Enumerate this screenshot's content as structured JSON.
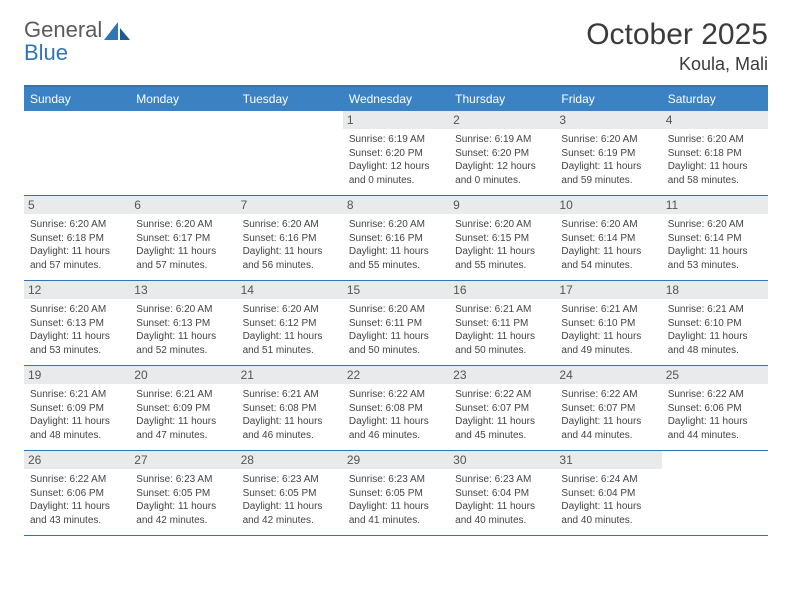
{
  "logo": {
    "general": "General",
    "blue": "Blue"
  },
  "title": "October 2025",
  "location": "Koula, Mali",
  "colors": {
    "header_bg": "#3b82c4",
    "border": "#2f76b8",
    "daynum_bg": "#e9eaeb",
    "text": "#444444",
    "logo_blue": "#2f76b8",
    "logo_gray": "#5a5a5a"
  },
  "weekdays": [
    "Sunday",
    "Monday",
    "Tuesday",
    "Wednesday",
    "Thursday",
    "Friday",
    "Saturday"
  ],
  "weeks": [
    [
      null,
      null,
      null,
      {
        "n": "1",
        "sr": "6:19 AM",
        "ss": "6:20 PM",
        "dl": "12 hours and 0 minutes."
      },
      {
        "n": "2",
        "sr": "6:19 AM",
        "ss": "6:20 PM",
        "dl": "12 hours and 0 minutes."
      },
      {
        "n": "3",
        "sr": "6:20 AM",
        "ss": "6:19 PM",
        "dl": "11 hours and 59 minutes."
      },
      {
        "n": "4",
        "sr": "6:20 AM",
        "ss": "6:18 PM",
        "dl": "11 hours and 58 minutes."
      }
    ],
    [
      {
        "n": "5",
        "sr": "6:20 AM",
        "ss": "6:18 PM",
        "dl": "11 hours and 57 minutes."
      },
      {
        "n": "6",
        "sr": "6:20 AM",
        "ss": "6:17 PM",
        "dl": "11 hours and 57 minutes."
      },
      {
        "n": "7",
        "sr": "6:20 AM",
        "ss": "6:16 PM",
        "dl": "11 hours and 56 minutes."
      },
      {
        "n": "8",
        "sr": "6:20 AM",
        "ss": "6:16 PM",
        "dl": "11 hours and 55 minutes."
      },
      {
        "n": "9",
        "sr": "6:20 AM",
        "ss": "6:15 PM",
        "dl": "11 hours and 55 minutes."
      },
      {
        "n": "10",
        "sr": "6:20 AM",
        "ss": "6:14 PM",
        "dl": "11 hours and 54 minutes."
      },
      {
        "n": "11",
        "sr": "6:20 AM",
        "ss": "6:14 PM",
        "dl": "11 hours and 53 minutes."
      }
    ],
    [
      {
        "n": "12",
        "sr": "6:20 AM",
        "ss": "6:13 PM",
        "dl": "11 hours and 53 minutes."
      },
      {
        "n": "13",
        "sr": "6:20 AM",
        "ss": "6:13 PM",
        "dl": "11 hours and 52 minutes."
      },
      {
        "n": "14",
        "sr": "6:20 AM",
        "ss": "6:12 PM",
        "dl": "11 hours and 51 minutes."
      },
      {
        "n": "15",
        "sr": "6:20 AM",
        "ss": "6:11 PM",
        "dl": "11 hours and 50 minutes."
      },
      {
        "n": "16",
        "sr": "6:21 AM",
        "ss": "6:11 PM",
        "dl": "11 hours and 50 minutes."
      },
      {
        "n": "17",
        "sr": "6:21 AM",
        "ss": "6:10 PM",
        "dl": "11 hours and 49 minutes."
      },
      {
        "n": "18",
        "sr": "6:21 AM",
        "ss": "6:10 PM",
        "dl": "11 hours and 48 minutes."
      }
    ],
    [
      {
        "n": "19",
        "sr": "6:21 AM",
        "ss": "6:09 PM",
        "dl": "11 hours and 48 minutes."
      },
      {
        "n": "20",
        "sr": "6:21 AM",
        "ss": "6:09 PM",
        "dl": "11 hours and 47 minutes."
      },
      {
        "n": "21",
        "sr": "6:21 AM",
        "ss": "6:08 PM",
        "dl": "11 hours and 46 minutes."
      },
      {
        "n": "22",
        "sr": "6:22 AM",
        "ss": "6:08 PM",
        "dl": "11 hours and 46 minutes."
      },
      {
        "n": "23",
        "sr": "6:22 AM",
        "ss": "6:07 PM",
        "dl": "11 hours and 45 minutes."
      },
      {
        "n": "24",
        "sr": "6:22 AM",
        "ss": "6:07 PM",
        "dl": "11 hours and 44 minutes."
      },
      {
        "n": "25",
        "sr": "6:22 AM",
        "ss": "6:06 PM",
        "dl": "11 hours and 44 minutes."
      }
    ],
    [
      {
        "n": "26",
        "sr": "6:22 AM",
        "ss": "6:06 PM",
        "dl": "11 hours and 43 minutes."
      },
      {
        "n": "27",
        "sr": "6:23 AM",
        "ss": "6:05 PM",
        "dl": "11 hours and 42 minutes."
      },
      {
        "n": "28",
        "sr": "6:23 AM",
        "ss": "6:05 PM",
        "dl": "11 hours and 42 minutes."
      },
      {
        "n": "29",
        "sr": "6:23 AM",
        "ss": "6:05 PM",
        "dl": "11 hours and 41 minutes."
      },
      {
        "n": "30",
        "sr": "6:23 AM",
        "ss": "6:04 PM",
        "dl": "11 hours and 40 minutes."
      },
      {
        "n": "31",
        "sr": "6:24 AM",
        "ss": "6:04 PM",
        "dl": "11 hours and 40 minutes."
      },
      null
    ]
  ],
  "labels": {
    "sunrise": "Sunrise:",
    "sunset": "Sunset:",
    "daylight": "Daylight:"
  }
}
